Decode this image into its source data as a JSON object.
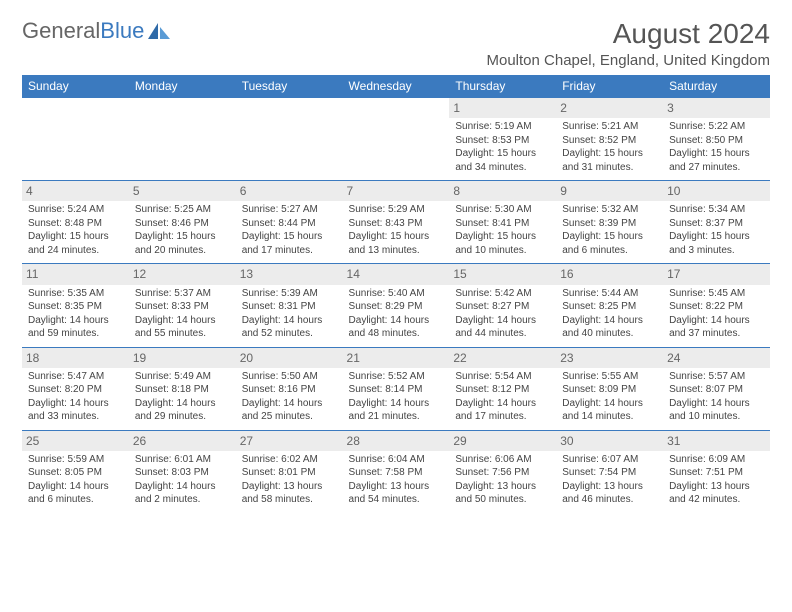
{
  "brand": {
    "word1": "General",
    "word2": "Blue"
  },
  "title": "August 2024",
  "location": "Moulton Chapel, England, United Kingdom",
  "colors": {
    "header_bg": "#3b7abf",
    "header_text": "#ffffff",
    "daynum_bg": "#ececec",
    "body_text": "#444444",
    "brand_gray": "#666666",
    "brand_blue": "#3b7abf"
  },
  "day_headers": [
    "Sunday",
    "Monday",
    "Tuesday",
    "Wednesday",
    "Thursday",
    "Friday",
    "Saturday"
  ],
  "weeks": [
    [
      null,
      null,
      null,
      null,
      {
        "n": "1",
        "sr": "5:19 AM",
        "ss": "8:53 PM",
        "dl": "15 hours and 34 minutes."
      },
      {
        "n": "2",
        "sr": "5:21 AM",
        "ss": "8:52 PM",
        "dl": "15 hours and 31 minutes."
      },
      {
        "n": "3",
        "sr": "5:22 AM",
        "ss": "8:50 PM",
        "dl": "15 hours and 27 minutes."
      }
    ],
    [
      {
        "n": "4",
        "sr": "5:24 AM",
        "ss": "8:48 PM",
        "dl": "15 hours and 24 minutes."
      },
      {
        "n": "5",
        "sr": "5:25 AM",
        "ss": "8:46 PM",
        "dl": "15 hours and 20 minutes."
      },
      {
        "n": "6",
        "sr": "5:27 AM",
        "ss": "8:44 PM",
        "dl": "15 hours and 17 minutes."
      },
      {
        "n": "7",
        "sr": "5:29 AM",
        "ss": "8:43 PM",
        "dl": "15 hours and 13 minutes."
      },
      {
        "n": "8",
        "sr": "5:30 AM",
        "ss": "8:41 PM",
        "dl": "15 hours and 10 minutes."
      },
      {
        "n": "9",
        "sr": "5:32 AM",
        "ss": "8:39 PM",
        "dl": "15 hours and 6 minutes."
      },
      {
        "n": "10",
        "sr": "5:34 AM",
        "ss": "8:37 PM",
        "dl": "15 hours and 3 minutes."
      }
    ],
    [
      {
        "n": "11",
        "sr": "5:35 AM",
        "ss": "8:35 PM",
        "dl": "14 hours and 59 minutes."
      },
      {
        "n": "12",
        "sr": "5:37 AM",
        "ss": "8:33 PM",
        "dl": "14 hours and 55 minutes."
      },
      {
        "n": "13",
        "sr": "5:39 AM",
        "ss": "8:31 PM",
        "dl": "14 hours and 52 minutes."
      },
      {
        "n": "14",
        "sr": "5:40 AM",
        "ss": "8:29 PM",
        "dl": "14 hours and 48 minutes."
      },
      {
        "n": "15",
        "sr": "5:42 AM",
        "ss": "8:27 PM",
        "dl": "14 hours and 44 minutes."
      },
      {
        "n": "16",
        "sr": "5:44 AM",
        "ss": "8:25 PM",
        "dl": "14 hours and 40 minutes."
      },
      {
        "n": "17",
        "sr": "5:45 AM",
        "ss": "8:22 PM",
        "dl": "14 hours and 37 minutes."
      }
    ],
    [
      {
        "n": "18",
        "sr": "5:47 AM",
        "ss": "8:20 PM",
        "dl": "14 hours and 33 minutes."
      },
      {
        "n": "19",
        "sr": "5:49 AM",
        "ss": "8:18 PM",
        "dl": "14 hours and 29 minutes."
      },
      {
        "n": "20",
        "sr": "5:50 AM",
        "ss": "8:16 PM",
        "dl": "14 hours and 25 minutes."
      },
      {
        "n": "21",
        "sr": "5:52 AM",
        "ss": "8:14 PM",
        "dl": "14 hours and 21 minutes."
      },
      {
        "n": "22",
        "sr": "5:54 AM",
        "ss": "8:12 PM",
        "dl": "14 hours and 17 minutes."
      },
      {
        "n": "23",
        "sr": "5:55 AM",
        "ss": "8:09 PM",
        "dl": "14 hours and 14 minutes."
      },
      {
        "n": "24",
        "sr": "5:57 AM",
        "ss": "8:07 PM",
        "dl": "14 hours and 10 minutes."
      }
    ],
    [
      {
        "n": "25",
        "sr": "5:59 AM",
        "ss": "8:05 PM",
        "dl": "14 hours and 6 minutes."
      },
      {
        "n": "26",
        "sr": "6:01 AM",
        "ss": "8:03 PM",
        "dl": "14 hours and 2 minutes."
      },
      {
        "n": "27",
        "sr": "6:02 AM",
        "ss": "8:01 PM",
        "dl": "13 hours and 58 minutes."
      },
      {
        "n": "28",
        "sr": "6:04 AM",
        "ss": "7:58 PM",
        "dl": "13 hours and 54 minutes."
      },
      {
        "n": "29",
        "sr": "6:06 AM",
        "ss": "7:56 PM",
        "dl": "13 hours and 50 minutes."
      },
      {
        "n": "30",
        "sr": "6:07 AM",
        "ss": "7:54 PM",
        "dl": "13 hours and 46 minutes."
      },
      {
        "n": "31",
        "sr": "6:09 AM",
        "ss": "7:51 PM",
        "dl": "13 hours and 42 minutes."
      }
    ]
  ],
  "labels": {
    "sunrise_prefix": "Sunrise: ",
    "sunset_prefix": "Sunset: ",
    "daylight_prefix": "Daylight: "
  }
}
